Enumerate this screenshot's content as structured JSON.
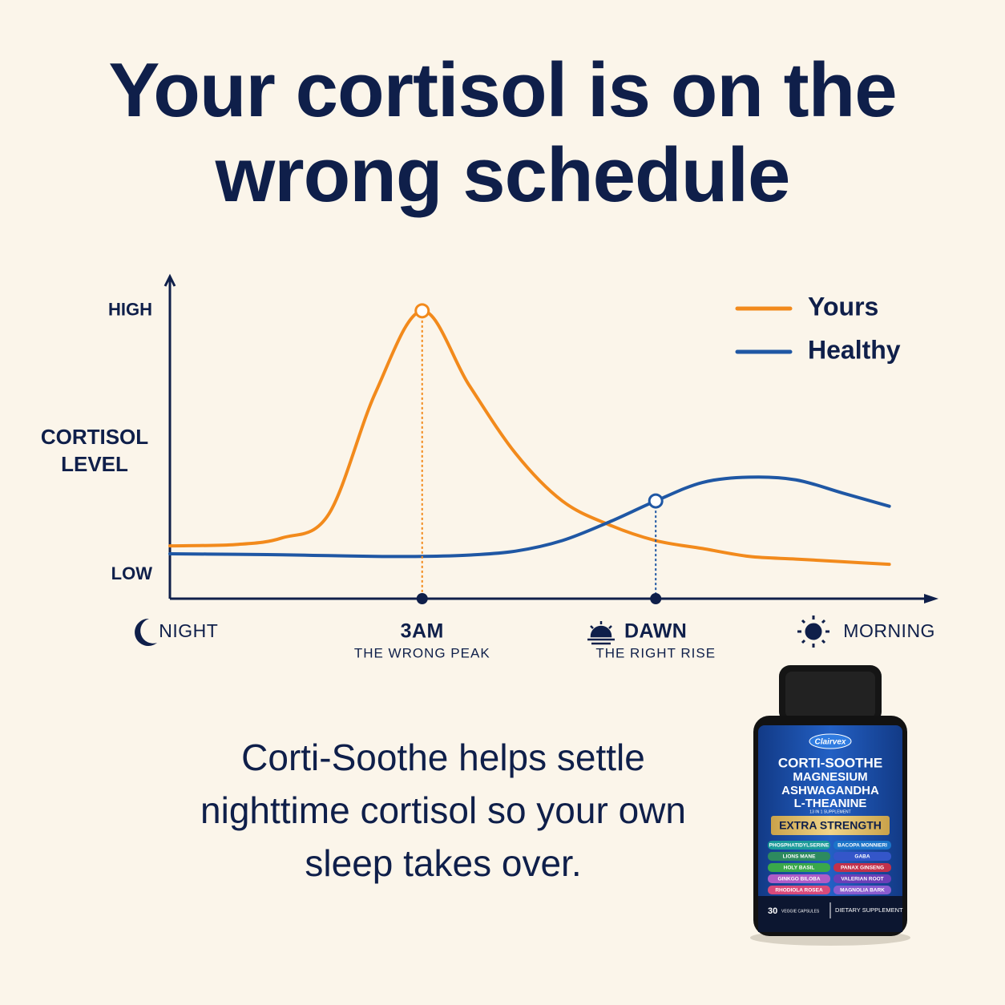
{
  "chart_data": {
    "type": "line",
    "title": "Your cortisol is on the wrong schedule",
    "ylabel": "CORTISOL LEVEL",
    "x": [
      -0.08,
      0.2,
      0.4,
      0.6,
      0.8,
      1,
      1.2,
      1.4,
      1.6,
      1.8,
      2,
      2.2,
      2.4,
      2.6,
      2.8,
      3
    ],
    "series": [
      {
        "name": "Yours",
        "color": "#f28a1c",
        "values": [
          11,
          11.5,
          14,
          23,
          69,
          100,
          72,
          46,
          28,
          19,
          13,
          10,
          7,
          6,
          5,
          4
        ]
      },
      {
        "name": "Healthy",
        "color": "#1f57a4",
        "values": [
          8,
          7.8,
          7.6,
          7.3,
          7,
          7,
          7.5,
          9,
          13,
          20,
          28,
          35,
          37,
          36,
          31,
          26
        ]
      }
    ],
    "xlim": [
      -0.08,
      3.19
    ],
    "ylim": [
      -9,
      113
    ],
    "xticks": [
      {
        "value": 0,
        "label": "NIGHT"
      },
      {
        "value": 1,
        "label": "3AM",
        "note": "THE WRONG PEAK",
        "series": 0
      },
      {
        "value": 2,
        "label": "DAWN",
        "note": "THE RIGHT RISE",
        "series": 1
      },
      {
        "value": 3,
        "label": "MORNING"
      }
    ],
    "yticks": [
      {
        "value": 0,
        "label": "LOW"
      },
      {
        "value": 100,
        "label": "HIGH"
      }
    ],
    "legend": "upper right",
    "axis_color": "#0f1f4a"
  },
  "caption": "Corti-Soothe helps settle nighttime cortisol so your own sleep takes over.",
  "product": {
    "brand": "Clairvex",
    "lines": [
      "CORTI-SOOTHE",
      "MAGNESIUM",
      "ASHWAGANDHA",
      "L-THEANINE"
    ],
    "tagline": "13 IN 1 SUPPLEMENT",
    "badge": "EXTRA STRENGTH",
    "ingredients": [
      {
        "name": "PHOSPHATIDYLSERINE",
        "color": "#1a9a9a"
      },
      {
        "name": "BACOPA MONNIERI",
        "color": "#1b74c9"
      },
      {
        "name": "LIONS MANE",
        "color": "#2d8a5f"
      },
      {
        "name": "GABA",
        "color": "#3456c9"
      },
      {
        "name": "HOLY BASIL",
        "color": "#3aa84a"
      },
      {
        "name": "PANAX GINSENG",
        "color": "#c2314b"
      },
      {
        "name": "GINKGO BILOBA",
        "color": "#b05cc7"
      },
      {
        "name": "VALERIAN ROOT",
        "color": "#6b3fb8"
      },
      {
        "name": "RHODIOLA ROSEA",
        "color": "#d94a7a"
      },
      {
        "name": "MAGNOLIA BARK",
        "color": "#8a5cd0"
      }
    ],
    "count": "30",
    "count_label": "VEGGIE CAPSULES",
    "kind": "DIETARY SUPPLEMENT"
  }
}
